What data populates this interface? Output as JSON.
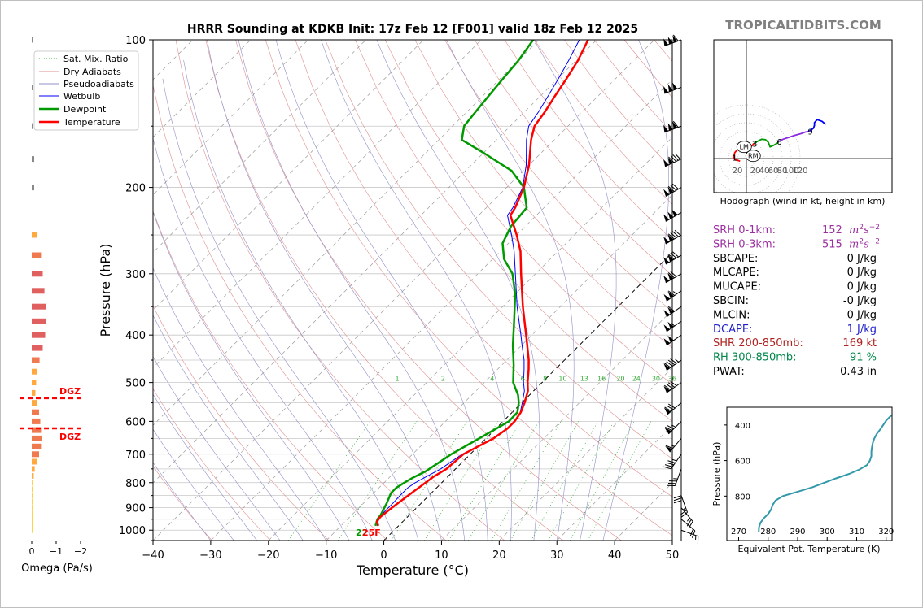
{
  "title": "HRRR Sounding at KDKB Init: 17z Feb 12 [F001] valid 18z Feb 12 2025",
  "brand": "TROPICALTIDBITS.COM",
  "colors": {
    "temperature": "#ff0000",
    "dewpoint": "#009900",
    "wetbulb": "#0000ff",
    "dry_adiabat": "#e09090",
    "pseudoadiabat": "#9090c8",
    "mixing_ratio": "#33aa33",
    "brand": "#808080"
  },
  "chart_data": [
    {
      "id": "skewt",
      "type": "line",
      "xlabel": "Temperature (°C)",
      "ylabel": "Pressure (hPa)",
      "xlim": [
        -40,
        50
      ],
      "ylim": [
        1050,
        100
      ],
      "yscale": "log",
      "skew_deg": 45,
      "xticks": [
        -40,
        -30,
        -20,
        -10,
        0,
        10,
        20,
        30,
        40,
        50
      ],
      "xtick_labels": [
        "−40",
        "−30",
        "−20",
        "−10",
        "0",
        "10",
        "20",
        "30",
        "40",
        "50"
      ],
      "yticks": [
        100,
        200,
        300,
        400,
        500,
        600,
        700,
        800,
        900,
        1000
      ],
      "legend_position": "top-left",
      "legend": [
        "Sat. Mix. Ratio",
        "Dry Adiabats",
        "Pseudoadiabats",
        "Wetbulb",
        "Dewpoint",
        "Temperature"
      ],
      "mixing_ratio_labels": [
        "1",
        "2",
        "4",
        "6",
        "8",
        "10",
        "13",
        "16",
        "20",
        "24",
        "30",
        "36"
      ],
      "mixing_ratio_values": [
        1,
        2,
        4,
        6,
        8,
        10,
        13,
        16,
        20,
        24,
        30,
        36
      ],
      "surface_label": "22",
      "surface_label_2": "25F",
      "series": [
        {
          "name": "Temperature",
          "values": [
            [
              980,
              -3.5
            ],
            [
              960,
              -4.5
            ],
            [
              940,
              -4.7
            ],
            [
              900,
              -4.3
            ],
            [
              850,
              -3.6
            ],
            [
              800,
              -2.8
            ],
            [
              780,
              -2.5
            ],
            [
              750,
              -1.6
            ],
            [
              700,
              -1.2
            ],
            [
              675,
              0.0
            ],
            [
              650,
              1.3
            ],
            [
              620,
              2.0
            ],
            [
              600,
              2.0
            ],
            [
              575,
              1.5
            ],
            [
              550,
              0.5
            ],
            [
              520,
              -1.0
            ],
            [
              500,
              -2.5
            ],
            [
              470,
              -4.6
            ],
            [
              450,
              -6.2
            ],
            [
              420,
              -9.0
            ],
            [
              400,
              -11.0
            ],
            [
              350,
              -16.5
            ],
            [
              300,
              -22.5
            ],
            [
              270,
              -26.5
            ],
            [
              250,
              -30.0
            ],
            [
              228,
              -34.5
            ],
            [
              220,
              -35.0
            ],
            [
              200,
              -37.0
            ],
            [
              180,
              -40.0
            ],
            [
              160,
              -44.0
            ],
            [
              150,
              -45.8
            ],
            [
              140,
              -46.5
            ],
            [
              130,
              -47.5
            ],
            [
              120,
              -48.5
            ],
            [
              110,
              -49.7
            ],
            [
              100,
              -51.5
            ]
          ]
        },
        {
          "name": "Dewpoint",
          "values": [
            [
              980,
              -4.0
            ],
            [
              950,
              -4.8
            ],
            [
              930,
              -5.0
            ],
            [
              880,
              -6.0
            ],
            [
              840,
              -7.0
            ],
            [
              820,
              -7.0
            ],
            [
              800,
              -6.5
            ],
            [
              780,
              -5.8
            ],
            [
              760,
              -4.8
            ],
            [
              720,
              -3.8
            ],
            [
              700,
              -3.3
            ],
            [
              650,
              -1.2
            ],
            [
              600,
              1.0
            ],
            [
              575,
              0.9
            ],
            [
              550,
              -0.5
            ],
            [
              530,
              -2.0
            ],
            [
              500,
              -5.0
            ],
            [
              460,
              -8.0
            ],
            [
              420,
              -11.5
            ],
            [
              380,
              -15.0
            ],
            [
              330,
              -20.0
            ],
            [
              300,
              -24.0
            ],
            [
              280,
              -28.0
            ],
            [
              260,
              -31.0
            ],
            [
              240,
              -32.5
            ],
            [
              220,
              -33.0
            ],
            [
              200,
              -37.0
            ],
            [
              185,
              -42.0
            ],
            [
              170,
              -50.0
            ],
            [
              160,
              -56.0
            ],
            [
              150,
              -58.0
            ],
            [
              140,
              -58.5
            ],
            [
              130,
              -59.0
            ],
            [
              120,
              -59.5
            ],
            [
              110,
              -60.0
            ],
            [
              100,
              -61.0
            ]
          ]
        },
        {
          "name": "Wetbulb",
          "values": [
            [
              980,
              -3.7
            ],
            [
              950,
              -4.6
            ],
            [
              920,
              -4.9
            ],
            [
              880,
              -4.9
            ],
            [
              850,
              -5.0
            ],
            [
              820,
              -5.0
            ],
            [
              800,
              -4.6
            ],
            [
              780,
              -3.8
            ],
            [
              750,
              -2.6
            ],
            [
              700,
              -1.4
            ],
            [
              650,
              1.1
            ],
            [
              620,
              1.9
            ],
            [
              600,
              2.0
            ],
            [
              575,
              1.4
            ],
            [
              550,
              0.1
            ],
            [
              520,
              -1.6
            ],
            [
              500,
              -3.2
            ],
            [
              470,
              -5.4
            ],
            [
              450,
              -7.0
            ],
            [
              420,
              -9.9
            ],
            [
              400,
              -11.9
            ],
            [
              350,
              -17.5
            ],
            [
              300,
              -23.5
            ],
            [
              270,
              -27.6
            ],
            [
              250,
              -30.9
            ],
            [
              228,
              -35.0
            ],
            [
              220,
              -35.4
            ],
            [
              200,
              -37.2
            ],
            [
              180,
              -40.5
            ],
            [
              160,
              -44.8
            ],
            [
              150,
              -46.8
            ],
            [
              140,
              -47.6
            ],
            [
              130,
              -48.7
            ],
            [
              120,
              -49.9
            ],
            [
              110,
              -51.3
            ],
            [
              100,
              -53.0
            ]
          ]
        }
      ]
    },
    {
      "id": "omega",
      "type": "bar",
      "xlabel": "Omega (Pa/s)",
      "xlim": [
        0,
        -2
      ],
      "xticks": [
        0,
        -1,
        -2
      ],
      "xtick_labels": [
        "0",
        "−1",
        "−2"
      ],
      "dgz_label": "DGZ",
      "dgz_levels": [
        538,
        620
      ],
      "levels": [
        100,
        125,
        150,
        175,
        200,
        250,
        275,
        300,
        325,
        350,
        375,
        400,
        425,
        450,
        475,
        500,
        525,
        550,
        575,
        600,
        625,
        650,
        675,
        700,
        725,
        750,
        775,
        800,
        825,
        850,
        875,
        900,
        925,
        950,
        975,
        1000
      ],
      "values": [
        -0.05,
        -0.04,
        -0.03,
        -0.1,
        -0.1,
        -0.22,
        -0.38,
        -0.45,
        -0.52,
        -0.6,
        -0.6,
        -0.55,
        -0.45,
        -0.32,
        -0.22,
        -0.18,
        -0.15,
        -0.2,
        -0.3,
        -0.35,
        -0.38,
        -0.4,
        -0.38,
        -0.3,
        -0.2,
        -0.12,
        -0.08,
        -0.06,
        -0.06,
        -0.06,
        -0.06,
        -0.06,
        -0.05,
        -0.04,
        -0.03,
        -0.02
      ]
    },
    {
      "id": "hodograph",
      "type": "line",
      "xlabel": "Hodograph (wind in kt, height in km)",
      "ring_labels": [
        "20",
        "20",
        "40",
        "60",
        "80",
        "100",
        "120"
      ],
      "ring_values": [
        20,
        40,
        60,
        80,
        100,
        120
      ],
      "height_labels": [
        "1",
        "2",
        "3",
        "6",
        "9"
      ],
      "lm_label": "LM",
      "rm_label": "RM",
      "series": [
        {
          "color": "#ff0000",
          "values": [
            [
              -14,
              -6
            ],
            [
              -19,
              -4
            ],
            [
              -25,
              -3
            ],
            [
              -28,
              3
            ],
            [
              -26,
              13
            ],
            [
              -21,
              19
            ],
            [
              -12,
              22
            ],
            [
              -3,
              23
            ],
            [
              5,
              23
            ],
            [
              13,
              29
            ],
            [
              17,
              34
            ]
          ]
        },
        {
          "color": "#009900",
          "values": [
            [
              17,
              34
            ],
            [
              26,
              39
            ],
            [
              34,
              43
            ],
            [
              43,
              42
            ],
            [
              49,
              36
            ],
            [
              53,
              26
            ],
            [
              62,
              30
            ],
            [
              70,
              35
            ],
            [
              72,
              38
            ]
          ]
        },
        {
          "color": "#8a2be2",
          "values": [
            [
              72,
              38
            ],
            [
              82,
              43
            ],
            [
              94,
              47
            ],
            [
              106,
              51
            ],
            [
              120,
              55
            ],
            [
              131,
              59
            ],
            [
              141,
              61
            ]
          ]
        },
        {
          "color": "#0000ff",
          "values": [
            [
              141,
              61
            ],
            [
              150,
              68
            ],
            [
              152,
              74
            ],
            [
              152,
              80
            ],
            [
              158,
              87
            ],
            [
              169,
              83
            ],
            [
              177,
              76
            ]
          ]
        }
      ],
      "lm": [
        -5,
        26
      ],
      "rm": [
        15,
        6
      ]
    },
    {
      "id": "theta_e",
      "type": "line",
      "xlabel": "Equivalent Pot. Temperature (K)",
      "ylabel": "Pressure (hPa)",
      "xlim": [
        266,
        322
      ],
      "ylim": [
        1050,
        300
      ],
      "xticks": [
        270,
        280,
        290,
        300,
        310,
        320
      ],
      "yticks": [
        400,
        600,
        800
      ],
      "series": [
        {
          "name": "Theta-e",
          "values": [
            [
              1000,
              276.8
            ],
            [
              975,
              276.9
            ],
            [
              950,
              277.4
            ],
            [
              925,
              278.5
            ],
            [
              900,
              280.0
            ],
            [
              875,
              281.0
            ],
            [
              850,
              281.5
            ],
            [
              825,
              282.5
            ],
            [
              800,
              285.0
            ],
            [
              775,
              290.0
            ],
            [
              750,
              295.0
            ],
            [
              725,
              299.0
            ],
            [
              700,
              303.0
            ],
            [
              675,
              307.5
            ],
            [
              650,
              311.0
            ],
            [
              625,
              313.5
            ],
            [
              600,
              314.5
            ],
            [
              575,
              315.0
            ],
            [
              550,
              315.0
            ],
            [
              525,
              315.2
            ],
            [
              500,
              315.5
            ],
            [
              475,
              316.0
            ],
            [
              450,
              316.8
            ],
            [
              425,
              318.0
            ],
            [
              400,
              319.0
            ],
            [
              375,
              320.0
            ],
            [
              350,
              321.5
            ],
            [
              330,
              323.5
            ]
          ]
        }
      ]
    }
  ],
  "hodograph_caption": "Hodograph (wind in kt, height in km)",
  "stats": [
    {
      "label": "SRH 0-1km:",
      "value": "152",
      "unit": "m2s-2",
      "color": "#9b30a0"
    },
    {
      "label": "SRH 0-3km:",
      "value": "515",
      "unit": "m2s-2",
      "color": "#9b30a0"
    },
    {
      "label": "SBCAPE:",
      "value": "0 J/kg",
      "color": "#000000"
    },
    {
      "label": "MLCAPE:",
      "value": "0 J/kg",
      "color": "#000000"
    },
    {
      "label": "MUCAPE:",
      "value": "0 J/kg",
      "color": "#000000"
    },
    {
      "label": "SBCIN:",
      "value": "-0 J/kg",
      "color": "#000000"
    },
    {
      "label": "MLCIN:",
      "value": "0 J/kg",
      "color": "#000000"
    },
    {
      "label": "DCAPE:",
      "value": "1 J/kg",
      "color": "#2222cc"
    },
    {
      "label": "SHR 200-850mb:",
      "value": "169 kt",
      "color": "#b22222"
    },
    {
      "label": "RH 300-850mb:",
      "value": "91 %",
      "color": "#00884a"
    },
    {
      "label": "PWAT:",
      "value": "0.43 in",
      "color": "#000000"
    }
  ],
  "wind_barbs": [
    {
      "p": 100,
      "dir": 250,
      "spd": 160
    },
    {
      "p": 125,
      "dir": 250,
      "spd": 150
    },
    {
      "p": 150,
      "dir": 250,
      "spd": 160
    },
    {
      "p": 175,
      "dir": 245,
      "spd": 140
    },
    {
      "p": 200,
      "dir": 240,
      "spd": 130
    },
    {
      "p": 225,
      "dir": 240,
      "spd": 150
    },
    {
      "p": 250,
      "dir": 240,
      "spd": 140
    },
    {
      "p": 275,
      "dir": 240,
      "spd": 130
    },
    {
      "p": 300,
      "dir": 240,
      "spd": 120
    },
    {
      "p": 325,
      "dir": 235,
      "spd": 115
    },
    {
      "p": 350,
      "dir": 235,
      "spd": 110
    },
    {
      "p": 375,
      "dir": 235,
      "spd": 105
    },
    {
      "p": 400,
      "dir": 235,
      "spd": 100
    },
    {
      "p": 450,
      "dir": 235,
      "spd": 95
    },
    {
      "p": 500,
      "dir": 235,
      "spd": 90
    },
    {
      "p": 550,
      "dir": 230,
      "spd": 80
    },
    {
      "p": 600,
      "dir": 225,
      "spd": 75
    },
    {
      "p": 650,
      "dir": 220,
      "spd": 65
    },
    {
      "p": 700,
      "dir": 215,
      "spd": 45
    },
    {
      "p": 750,
      "dir": 200,
      "spd": 35
    },
    {
      "p": 800,
      "dir": 180,
      "spd": 30
    },
    {
      "p": 850,
      "dir": 160,
      "spd": 25
    },
    {
      "p": 900,
      "dir": 140,
      "spd": 25
    },
    {
      "p": 950,
      "dir": 130,
      "spd": 20
    },
    {
      "p": 1000,
      "dir": 110,
      "spd": 15
    }
  ]
}
